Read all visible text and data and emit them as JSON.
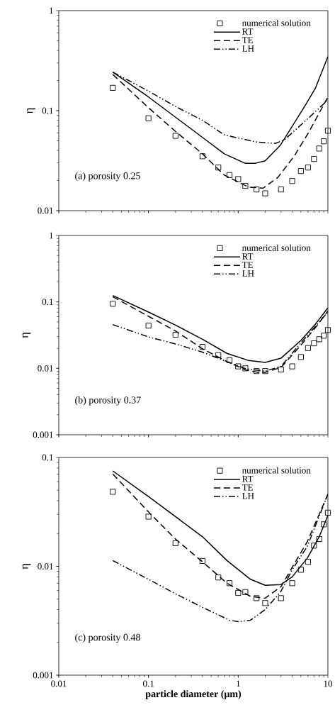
{
  "chart_data": [
    {
      "type": "line",
      "ylabel": "η",
      "annotations": [
        "(a) porosity 0.25"
      ],
      "log": "xy",
      "xlim": [
        0.01,
        10
      ],
      "xticks": [
        0.01,
        0.1,
        1,
        10
      ],
      "ylim": [
        0.01,
        1
      ],
      "yticks": [
        0.01,
        0.1,
        1
      ],
      "tick_labels": "y",
      "legend": "top right",
      "series": [
        {
          "name": "numerical solution",
          "type": "scatter",
          "marker": "square",
          "color": "#000000",
          "x": [
            0.04,
            0.1,
            0.2,
            0.4,
            0.6,
            0.8,
            1,
            1.2,
            1.6,
            2,
            3,
            4,
            5,
            6,
            7,
            8,
            9,
            10
          ],
          "values": [
            0.169,
            0.084,
            0.056,
            0.035,
            0.027,
            0.0227,
            0.0207,
            0.0177,
            0.0163,
            0.0149,
            0.0163,
            0.0198,
            0.0249,
            0.027,
            0.0329,
            0.0418,
            0.0494,
            0.063
          ]
        },
        {
          "name": "RT",
          "line_style": "solid",
          "color": "#000000",
          "x": [
            0.04,
            0.1,
            0.2,
            0.4,
            0.7,
            1.19,
            1.56,
            2,
            2.94,
            5.7,
            7.3,
            10
          ],
          "values": [
            0.243,
            0.137,
            0.086,
            0.054,
            0.037,
            0.0298,
            0.0298,
            0.0315,
            0.0449,
            0.116,
            0.17,
            0.347
          ]
        },
        {
          "name": "TE",
          "line_style": "dashed",
          "color": "#000000",
          "x": [
            0.04,
            0.1,
            0.2,
            0.4,
            0.7,
            1.3,
            1.9,
            2.77,
            4.2,
            6.1,
            10
          ],
          "values": [
            0.23,
            0.107,
            0.062,
            0.037,
            0.0227,
            0.0172,
            0.0168,
            0.0215,
            0.035,
            0.0605,
            0.137
          ]
        },
        {
          "name": "LH",
          "line_style": "dashdotdot",
          "color": "#000000",
          "x": [
            0.04,
            0.1,
            0.2,
            0.4,
            0.7,
            1.56,
            2.6,
            3.3,
            5.7,
            10
          ],
          "values": [
            0.243,
            0.157,
            0.11,
            0.08,
            0.0573,
            0.0487,
            0.047,
            0.0514,
            0.08,
            0.128
          ]
        }
      ]
    },
    {
      "type": "line",
      "ylabel": "η",
      "annotations": [
        "(b) porosity 0.37"
      ],
      "log": "xy",
      "xlim": [
        0.01,
        10
      ],
      "xticks": [
        0.01,
        0.1,
        1,
        10
      ],
      "ylim": [
        0.001,
        1
      ],
      "yticks": [
        0.001,
        0.01,
        0.1,
        1
      ],
      "tick_labels": "y",
      "legend": "top right",
      "series": [
        {
          "name": "numerical solution",
          "type": "scatter",
          "marker": "square",
          "color": "#000000",
          "x": [
            0.04,
            0.1,
            0.2,
            0.4,
            0.6,
            0.8,
            1,
            1.2,
            1.6,
            2,
            3,
            4,
            5,
            6,
            7,
            8,
            9,
            10
          ],
          "values": [
            0.0937,
            0.044,
            0.032,
            0.021,
            0.0158,
            0.0133,
            0.0107,
            0.01,
            0.0091,
            0.0091,
            0.0096,
            0.0107,
            0.0148,
            0.0202,
            0.0238,
            0.0274,
            0.031,
            0.0377
          ]
        },
        {
          "name": "RT",
          "line_style": "solid",
          "color": "#000000",
          "x": [
            0.04,
            0.1,
            0.2,
            0.4,
            0.75,
            1.31,
            2,
            3,
            5,
            7.3,
            10
          ],
          "values": [
            0.125,
            0.0703,
            0.0448,
            0.0274,
            0.0168,
            0.0131,
            0.0123,
            0.0142,
            0.0263,
            0.0467,
            0.0815
          ]
        },
        {
          "name": "TE",
          "line_style": "dashed",
          "color": "#000000",
          "x": [
            0.04,
            0.1,
            0.2,
            0.4,
            0.75,
            1.23,
            1.67,
            2,
            3,
            5,
            7.3,
            10
          ],
          "values": [
            0.1197,
            0.0607,
            0.0365,
            0.0197,
            0.0126,
            0.0094,
            0.0087,
            0.0087,
            0.0103,
            0.0223,
            0.0413,
            0.0732
          ]
        },
        {
          "name": "LH",
          "line_style": "dashdotdot",
          "color": "#000000",
          "x": [
            0.04,
            0.1,
            0.2,
            0.4,
            0.75,
            1.23,
            2,
            3,
            5,
            10
          ],
          "values": [
            0.0455,
            0.0297,
            0.0233,
            0.0175,
            0.0126,
            0.0098,
            0.0091,
            0.0107,
            0.0242,
            0.0703
          ]
        }
      ]
    },
    {
      "type": "line",
      "xlabel": "particle diameter (μm)",
      "ylabel": "η",
      "annotations": [
        "(c) porosity 0.48"
      ],
      "log": "xy",
      "xlim": [
        0.01,
        10
      ],
      "xticks": [
        0.01,
        0.1,
        1,
        10
      ],
      "ylim": [
        0.001,
        0.1
      ],
      "yticks": [
        0.001,
        0.01,
        0.1
      ],
      "legend": "top right",
      "series": [
        {
          "name": "numerical solution",
          "type": "scatter",
          "marker": "square",
          "color": "#000000",
          "x": [
            0.04,
            0.1,
            0.2,
            0.4,
            0.6,
            0.8,
            1,
            1.2,
            1.6,
            2,
            3,
            4,
            5,
            6,
            7,
            8,
            9,
            10
          ],
          "values": [
            0.0484,
            0.0286,
            0.0163,
            0.0112,
            0.0079,
            0.007,
            0.0057,
            0.0058,
            0.0051,
            0.0046,
            0.0051,
            0.007,
            0.0093,
            0.011,
            0.0155,
            0.0178,
            0.0243,
            0.0311
          ]
        },
        {
          "name": "RT",
          "line_style": "solid",
          "color": "#000000",
          "x": [
            0.04,
            0.1,
            0.2,
            0.4,
            0.75,
            1.37,
            2,
            3,
            4,
            5.9,
            8,
            10
          ],
          "values": [
            0.0752,
            0.0438,
            0.0286,
            0.0187,
            0.0113,
            0.0076,
            0.0067,
            0.0068,
            0.008,
            0.0119,
            0.0187,
            0.0293
          ]
        },
        {
          "name": "TE",
          "line_style": "dashed",
          "color": "#000000",
          "x": [
            0.04,
            0.1,
            0.2,
            0.4,
            0.75,
            1.37,
            2,
            3,
            4,
            5.9,
            10
          ],
          "values": [
            0.0705,
            0.0316,
            0.0178,
            0.011,
            0.007,
            0.0053,
            0.0051,
            0.0065,
            0.0098,
            0.0169,
            0.046
          ]
        },
        {
          "name": "LH",
          "line_style": "dashdotdot",
          "color": "#000000",
          "x": [
            0.04,
            0.1,
            0.2,
            0.4,
            0.8,
            1,
            1.37,
            2,
            3,
            4,
            5.9,
            10
          ],
          "values": [
            0.0113,
            0.0076,
            0.0056,
            0.0042,
            0.0032,
            0.0031,
            0.0032,
            0.004,
            0.0059,
            0.0093,
            0.0153,
            0.046
          ]
        }
      ]
    }
  ]
}
